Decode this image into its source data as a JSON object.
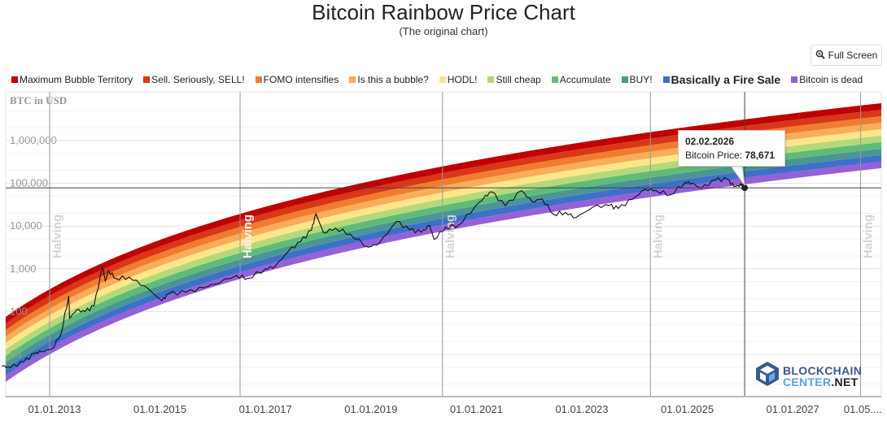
{
  "header": {
    "title": "Bitcoin Rainbow Price Chart",
    "subtitle": "(The original chart)",
    "fullscreen_label": "Full Screen",
    "fullscreen_icon": "zoom-in-icon"
  },
  "legend": [
    {
      "label": "Maximum Bubble Territory",
      "color": "#c00000"
    },
    {
      "label": "Sell. Seriously, SELL!",
      "color": "#d9361a"
    },
    {
      "label": "FOMO intensifies",
      "color": "#f07c2e"
    },
    {
      "label": "Is this a bubble?",
      "color": "#f7ad5a"
    },
    {
      "label": "HODL!",
      "color": "#fde68a"
    },
    {
      "label": "Still cheap",
      "color": "#b5d97a"
    },
    {
      "label": "Accumulate",
      "color": "#5fbc78"
    },
    {
      "label": "BUY!",
      "color": "#4a9597"
    },
    {
      "label": "Basically a Fire Sale",
      "color": "#3f6fc9",
      "bold": true
    },
    {
      "label": "Bitcoin is dead",
      "color": "#9660d9"
    }
  ],
  "tooltip": {
    "date": "02.02.2026",
    "label": "Bitcoin Price:",
    "value": "78,671"
  },
  "logo": {
    "line1": "BLOCKCHAIN",
    "line2a": "CENTER",
    "line2b": ".NET"
  },
  "chart_data": {
    "type": "line",
    "title": "Bitcoin Rainbow Price Chart",
    "ylabel": "BTC in USD",
    "yscale": "log",
    "ylim": [
      2,
      3000000
    ],
    "yticks": [
      {
        "v": 1000000,
        "label": "1,000,000"
      },
      {
        "v": 100000,
        "label": "100,000"
      },
      {
        "v": 10000,
        "label": "10,000"
      },
      {
        "v": 1000,
        "label": "1,000"
      },
      {
        "v": 100,
        "label": "100"
      },
      {
        "v": 10,
        "label": "10"
      }
    ],
    "xticks": [
      "01.01.2013",
      "01.01.2015",
      "01.01.2017",
      "01.01.2019",
      "01.01.2021",
      "01.01.2023",
      "01.01.2025",
      "01.01.2027",
      "01.05...."
    ],
    "xtick_dates": [
      "2013-01-01",
      "2015-01-01",
      "2017-01-01",
      "2019-01-01",
      "2021-01-01",
      "2023-01-01",
      "2025-01-01",
      "2027-01-01",
      "2028-05-01"
    ],
    "halvings": [
      {
        "date": "2012-11-28",
        "label": "Halving"
      },
      {
        "date": "2016-07-09",
        "label": "Halving"
      },
      {
        "date": "2020-05-11",
        "label": "Halving"
      },
      {
        "date": "2024-04-20",
        "label": "Halving"
      },
      {
        "date": "2028-04-15",
        "label": "Halving"
      }
    ],
    "grid": true,
    "legend_position": "top",
    "crosshair": {
      "date": "2026-02-02",
      "value": 78671
    },
    "series": [
      {
        "name": "Bitcoin Price",
        "points": [
          [
            "2012-01-01",
            5.3
          ],
          [
            "2012-03-01",
            4.9
          ],
          [
            "2012-06-01",
            6.7
          ],
          [
            "2012-08-15",
            10.5
          ],
          [
            "2012-10-01",
            11.5
          ],
          [
            "2012-12-15",
            13.5
          ],
          [
            "2013-02-15",
            30
          ],
          [
            "2013-04-09",
            230
          ],
          [
            "2013-04-16",
            70
          ],
          [
            "2013-06-01",
            108
          ],
          [
            "2013-08-01",
            100
          ],
          [
            "2013-10-01",
            135
          ],
          [
            "2013-11-30",
            1130
          ],
          [
            "2013-12-18",
            520
          ],
          [
            "2014-01-10",
            900
          ],
          [
            "2014-03-01",
            600
          ],
          [
            "2014-06-01",
            640
          ],
          [
            "2014-09-15",
            400
          ],
          [
            "2015-01-14",
            180
          ],
          [
            "2015-03-01",
            260
          ],
          [
            "2015-07-01",
            285
          ],
          [
            "2015-11-01",
            360
          ],
          [
            "2016-01-01",
            430
          ],
          [
            "2016-06-15",
            700
          ],
          [
            "2016-09-01",
            600
          ],
          [
            "2017-01-01",
            1000
          ],
          [
            "2017-03-10",
            1150
          ],
          [
            "2017-06-10",
            2600
          ],
          [
            "2017-09-01",
            4300
          ],
          [
            "2017-11-15",
            8000
          ],
          [
            "2017-12-17",
            19500
          ],
          [
            "2018-02-06",
            7000
          ],
          [
            "2018-05-01",
            9000
          ],
          [
            "2018-08-10",
            6500
          ],
          [
            "2018-12-15",
            3200
          ],
          [
            "2019-03-01",
            4000
          ],
          [
            "2019-06-26",
            12800
          ],
          [
            "2019-09-25",
            8200
          ],
          [
            "2019-12-15",
            7200
          ],
          [
            "2020-02-12",
            10300
          ],
          [
            "2020-03-13",
            4900
          ],
          [
            "2020-06-01",
            9400
          ],
          [
            "2020-09-01",
            10600
          ],
          [
            "2020-12-20",
            28000
          ],
          [
            "2021-02-20",
            45000
          ],
          [
            "2021-04-14",
            63500
          ],
          [
            "2021-07-20",
            29800
          ],
          [
            "2021-11-10",
            67500
          ],
          [
            "2022-01-22",
            37000
          ],
          [
            "2022-04-01",
            44000
          ],
          [
            "2022-06-18",
            19000
          ],
          [
            "2022-09-10",
            21000
          ],
          [
            "2022-11-21",
            15800
          ],
          [
            "2023-03-20",
            28000
          ],
          [
            "2023-07-10",
            30500
          ],
          [
            "2023-09-10",
            25800
          ],
          [
            "2023-12-15",
            42000
          ],
          [
            "2024-03-14",
            73000
          ],
          [
            "2024-06-01",
            68000
          ],
          [
            "2024-09-06",
            54000
          ],
          [
            "2024-12-17",
            106000
          ],
          [
            "2025-02-01",
            101000
          ],
          [
            "2025-04-08",
            76000
          ],
          [
            "2025-07-14",
            120000
          ],
          [
            "2025-10-06",
            124000
          ],
          [
            "2025-11-21",
            84000
          ],
          [
            "2025-12-20",
            88000
          ],
          [
            "2026-01-14",
            96000
          ],
          [
            "2026-02-02",
            78671
          ]
        ]
      }
    ]
  }
}
